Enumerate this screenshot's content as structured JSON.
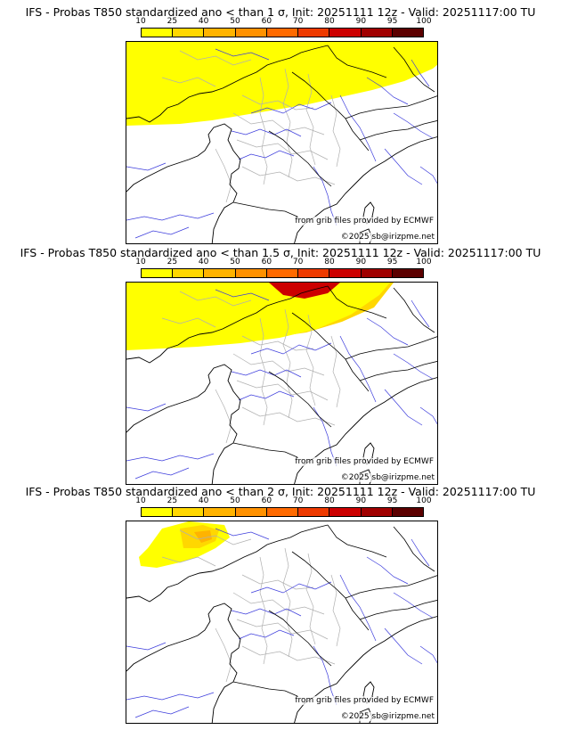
{
  "colorbar": {
    "ticks": [
      "10",
      "25",
      "40",
      "50",
      "60",
      "70",
      "80",
      "90",
      "95",
      "100"
    ],
    "colors": [
      "#ffff00",
      "#ffd700",
      "#ffb300",
      "#ff9100",
      "#ff6a00",
      "#ee3a00",
      "#cc0000",
      "#a00000",
      "#5c0000"
    ]
  },
  "panels": [
    {
      "title": "IFS - Probas T850  standardized ano < than 1 σ, Init: 20251111 12z - Valid: 20251117:00 TU",
      "credit_source": "from grib files provided by ECMWF",
      "credit_site": "©2025 sb@irizpme.net"
    },
    {
      "title": "IFS - Probas T850  standardized ano < than 1.5 σ, Init: 20251111 12z - Valid: 20251117:00 TU",
      "credit_source": "from grib files provided by ECMWF",
      "credit_site": "©2025 sb@irizpme.net"
    },
    {
      "title": "IFS - Probas T850  standardized ano < than 2 σ, Init: 20251111 12z - Valid: 20251117:00 TU",
      "credit_source": "from grib files provided by ECMWF",
      "credit_site": "©2025 sb@irizpme.net"
    }
  ]
}
